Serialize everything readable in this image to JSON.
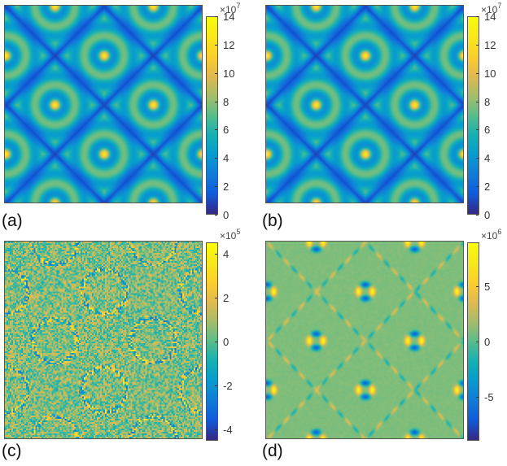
{
  "chart_data": [
    {
      "type": "heatmap",
      "panel_label": "(a)",
      "pattern": "diamond-lattice-magnitude",
      "colormap": "parula",
      "clim": [
        0,
        14
      ],
      "colorbar_ticks": [
        "0",
        "2",
        "4",
        "6",
        "8",
        "10",
        "12",
        "14"
      ],
      "colorbar_scale_base": "×10",
      "colorbar_scale_exp": "7"
    },
    {
      "type": "heatmap",
      "panel_label": "(b)",
      "pattern": "diamond-lattice-magnitude",
      "colormap": "parula",
      "clim": [
        0,
        14
      ],
      "colorbar_ticks": [
        "0",
        "2",
        "4",
        "6",
        "8",
        "10",
        "12",
        "14"
      ],
      "colorbar_scale_base": "×10",
      "colorbar_scale_exp": "7"
    },
    {
      "type": "heatmap",
      "panel_label": "(c)",
      "pattern": "noisy-error",
      "colormap": "parula",
      "clim": [
        -4.5,
        4.5
      ],
      "colorbar_ticks": [
        "-4",
        "-2",
        "0",
        "2",
        "4"
      ],
      "colorbar_scale_base": "×10",
      "colorbar_scale_exp": "5"
    },
    {
      "type": "heatmap",
      "panel_label": "(d)",
      "pattern": "structured-error",
      "colormap": "parula",
      "clim": [
        -9,
        9
      ],
      "colorbar_ticks": [
        "-5",
        "0",
        "5"
      ],
      "colorbar_scale_base": "×10",
      "colorbar_scale_exp": "6"
    }
  ]
}
